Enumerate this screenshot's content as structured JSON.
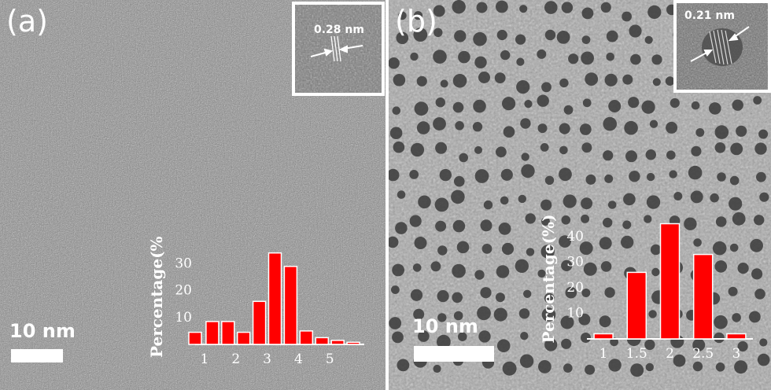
{
  "panels": [
    {
      "label": "(a)",
      "inset_label": "0.28 nm",
      "scalebar_label": "10 nm"
    },
    {
      "label": "(b)",
      "inset_label": "0.21 nm",
      "scalebar_label": "10 nm"
    }
  ],
  "colors": {
    "bar": "#ff0000",
    "axis_text": "#ffffff"
  },
  "chart_data": [
    {
      "type": "bar",
      "ylabel": "Percentage(%)",
      "xlim": [
        0.7,
        6.1
      ],
      "ylim": [
        0,
        38
      ],
      "y_ticks": [
        "10",
        "20",
        "30"
      ],
      "x_ticks": [
        "1",
        "2",
        "3",
        "4",
        "5"
      ],
      "x": [
        0.7,
        1.25,
        1.75,
        2.25,
        2.75,
        3.25,
        3.75,
        4.25,
        4.75,
        5.25,
        5.75
      ],
      "values": [
        4.5,
        8.5,
        8.5,
        4.5,
        16,
        34,
        29,
        5,
        2.5,
        1.5,
        0.8
      ]
    },
    {
      "type": "bar",
      "ylabel": "Percentage(%)",
      "xlim": [
        0.75,
        3.25
      ],
      "ylim": [
        0,
        47
      ],
      "y_ticks": [
        "10",
        "20",
        "30",
        "40"
      ],
      "x_ticks": [
        "1",
        "1.5",
        "2",
        "2.5",
        "3"
      ],
      "x": [
        1,
        1.5,
        2,
        2.5,
        3
      ],
      "values": [
        2,
        26,
        45,
        33,
        2
      ]
    }
  ]
}
